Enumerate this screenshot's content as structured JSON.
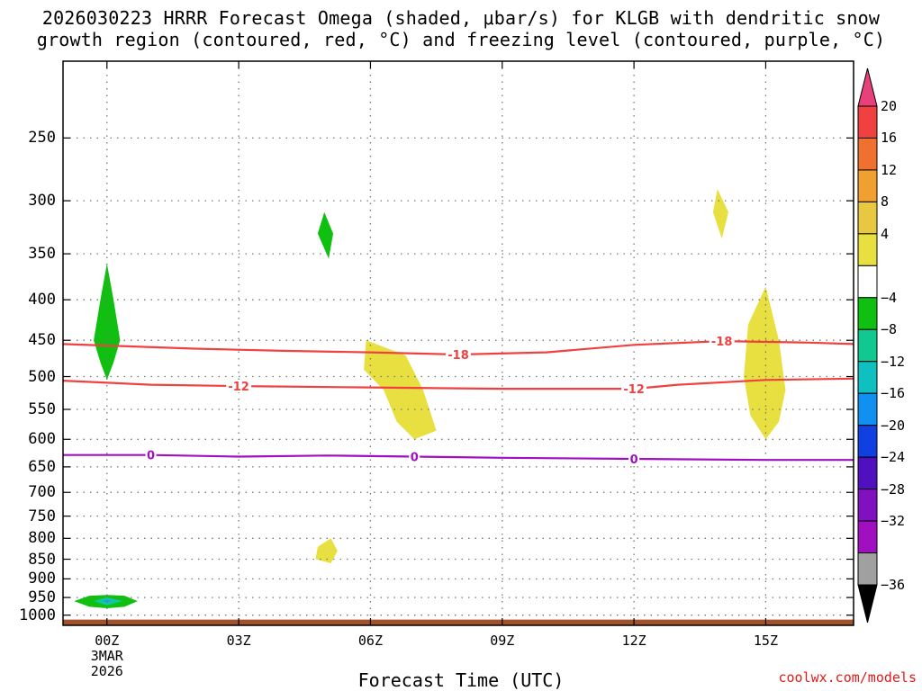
{
  "chart_data": {
    "type": "heatmap",
    "title_line1": "2026030223 HRRR Forecast Omega (shaded, μbar/s) for KLGB with dendritic snow",
    "title_line2": "growth region (contoured, red, °C) and freezing level (contoured, purple, °C)",
    "xlabel": "Forecast Time (UTC)",
    "ylabel": "",
    "x_ticks": [
      "00Z",
      "03Z",
      "06Z",
      "09Z",
      "12Z",
      "15Z"
    ],
    "x_tick_hours": [
      0,
      3,
      6,
      9,
      12,
      15
    ],
    "x_first_sublabel": [
      "3MAR",
      "2026"
    ],
    "xlim": [
      -1,
      17
    ],
    "y_ticks": [
      250,
      300,
      350,
      400,
      450,
      500,
      550,
      600,
      650,
      700,
      750,
      800,
      850,
      900,
      950,
      1000
    ],
    "ylim": [
      200,
      1030
    ],
    "colorbar": {
      "labels": [
        "20",
        "16",
        "12",
        "8",
        "4",
        "−4",
        "−8",
        "−12",
        "−16",
        "−20",
        "−24",
        "−28",
        "−32",
        "−36"
      ],
      "colors": [
        "#e8407a",
        "#f04040",
        "#f07030",
        "#f0a030",
        "#e8c840",
        "#e8e040",
        "#ffffff",
        "#10c010",
        "#10c890",
        "#10c0c0",
        "#1090f0",
        "#1040e0",
        "#5010c0",
        "#8010c0",
        "#a010c0",
        "#a0a0a0",
        "#000000"
      ]
    },
    "contours": [
      {
        "name": "dgz-minus18",
        "label": "-18",
        "color": "#f04040",
        "points": [
          [
            -1,
            455
          ],
          [
            0,
            457
          ],
          [
            2,
            461
          ],
          [
            4,
            464
          ],
          [
            6,
            466
          ],
          [
            8,
            469
          ],
          [
            10,
            466
          ],
          [
            12,
            456
          ],
          [
            14,
            451
          ],
          [
            16,
            453
          ],
          [
            17,
            455
          ]
        ]
      },
      {
        "name": "dgz-minus12",
        "label": "-12",
        "color": "#f04040",
        "points": [
          [
            -1,
            506
          ],
          [
            1,
            512
          ],
          [
            3,
            514
          ],
          [
            6,
            516
          ],
          [
            9,
            518
          ],
          [
            11,
            518
          ],
          [
            12,
            518
          ],
          [
            13,
            512
          ],
          [
            15,
            505
          ],
          [
            17,
            503
          ]
        ]
      },
      {
        "name": "freezing-level-0",
        "label": "0",
        "color": "#a010c0",
        "points": [
          [
            -1,
            628
          ],
          [
            1,
            628
          ],
          [
            3,
            631
          ],
          [
            5,
            629
          ],
          [
            7,
            631
          ],
          [
            9,
            633
          ],
          [
            12,
            635
          ],
          [
            15,
            637
          ],
          [
            17,
            637
          ]
        ]
      }
    ],
    "contour_labels": [
      {
        "text": "-18",
        "hour": 8.0,
        "pressure": 469,
        "color": "#f04040"
      },
      {
        "text": "-18",
        "hour": 14.0,
        "pressure": 451,
        "color": "#f04040"
      },
      {
        "text": "-12",
        "hour": 3.0,
        "pressure": 514,
        "color": "#f04040"
      },
      {
        "text": "-12",
        "hour": 12.0,
        "pressure": 518,
        "color": "#f04040"
      },
      {
        "text": "0",
        "hour": 1.0,
        "pressure": 628,
        "color": "#a010c0"
      },
      {
        "text": "0",
        "hour": 7.0,
        "pressure": 631,
        "color": "#a010c0"
      },
      {
        "text": "0",
        "hour": 12.0,
        "pressure": 635,
        "color": "#a010c0"
      }
    ],
    "omega_areas": [
      {
        "name": "omega-area-green-0z-upper",
        "color": "#10c010",
        "points": [
          [
            0.0,
            360
          ],
          [
            0.15,
            400
          ],
          [
            0.3,
            450
          ],
          [
            0.15,
            480
          ],
          [
            0.0,
            505
          ],
          [
            -0.15,
            480
          ],
          [
            -0.3,
            450
          ],
          [
            -0.15,
            400
          ]
        ]
      },
      {
        "name": "omega-area-green-5z",
        "color": "#10c010",
        "points": [
          [
            4.95,
            310
          ],
          [
            5.15,
            330
          ],
          [
            5.05,
            355
          ],
          [
            4.8,
            330
          ]
        ]
      },
      {
        "name": "omega-area-yellow-6z",
        "color": "#e8e040",
        "points": [
          [
            5.9,
            450
          ],
          [
            6.8,
            470
          ],
          [
            7.2,
            520
          ],
          [
            7.5,
            585
          ],
          [
            7.0,
            600
          ],
          [
            6.6,
            570
          ],
          [
            6.3,
            520
          ],
          [
            5.85,
            490
          ]
        ]
      },
      {
        "name": "omega-area-yellow-14z",
        "color": "#e8e040",
        "points": [
          [
            13.9,
            290
          ],
          [
            14.15,
            310
          ],
          [
            14.0,
            335
          ],
          [
            13.8,
            310
          ]
        ]
      },
      {
        "name": "omega-area-yellow-15z",
        "color": "#e8e040",
        "points": [
          [
            15.0,
            385
          ],
          [
            15.3,
            450
          ],
          [
            15.45,
            520
          ],
          [
            15.3,
            570
          ],
          [
            15.0,
            600
          ],
          [
            14.65,
            560
          ],
          [
            14.5,
            500
          ],
          [
            14.6,
            430
          ]
        ]
      },
      {
        "name": "omega-area-yellow-5z-low",
        "color": "#e8e040",
        "points": [
          [
            5.1,
            800
          ],
          [
            5.25,
            830
          ],
          [
            5.1,
            860
          ],
          [
            4.75,
            850
          ],
          [
            4.8,
            820
          ]
        ]
      },
      {
        "name": "omega-area-green-0z-low",
        "color": "#10c010",
        "points": [
          [
            -0.75,
            960
          ],
          [
            -0.4,
            945
          ],
          [
            0.0,
            943
          ],
          [
            0.4,
            945
          ],
          [
            0.7,
            960
          ],
          [
            0.4,
            976
          ],
          [
            0.0,
            980
          ],
          [
            -0.4,
            976
          ]
        ]
      },
      {
        "name": "omega-area-teal-0z-low",
        "color": "#10c8a0",
        "points": [
          [
            -0.3,
            960
          ],
          [
            0.0,
            950
          ],
          [
            0.35,
            960
          ],
          [
            0.0,
            972
          ]
        ]
      },
      {
        "name": "omega-area-blue-0z-low",
        "color": "#20a0e0",
        "points": [
          [
            -0.1,
            959
          ],
          [
            0.0,
            955
          ],
          [
            0.1,
            959
          ],
          [
            0.0,
            965
          ]
        ]
      }
    ],
    "terrain": {
      "color": "#a0522d",
      "pressure_top": 1013
    }
  },
  "credit": "coolwx.com/models"
}
